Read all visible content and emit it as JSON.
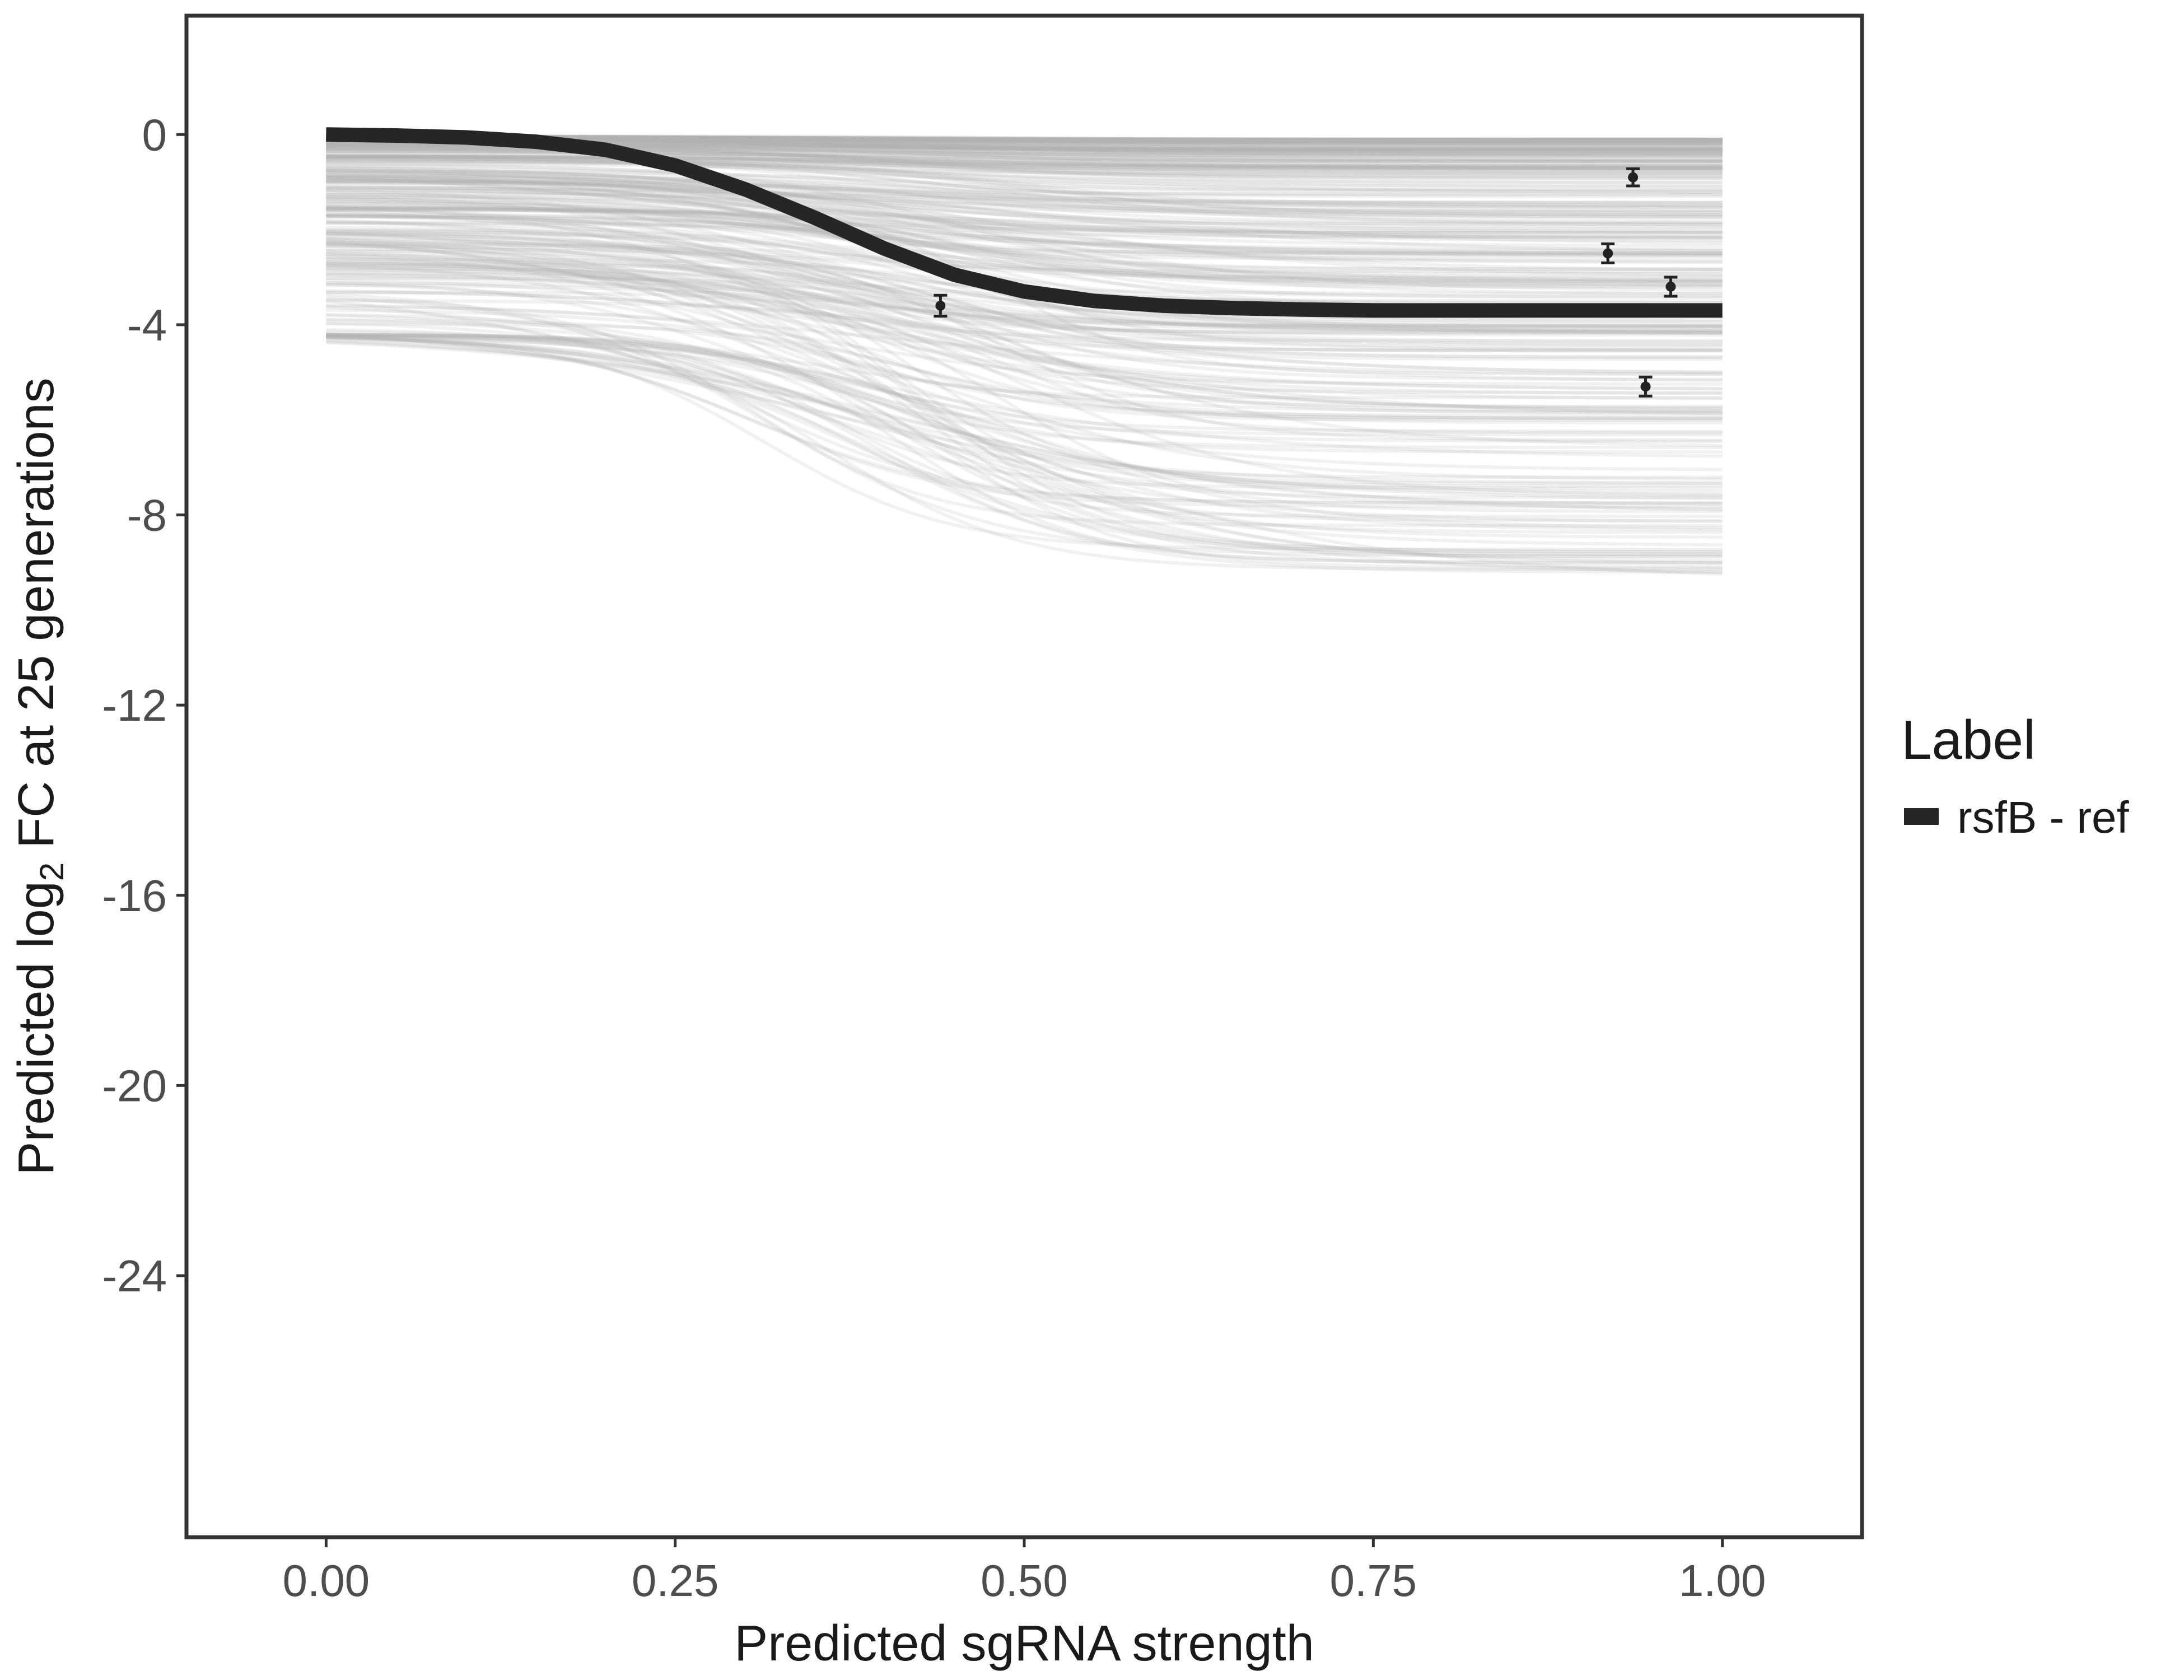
{
  "chart_data": {
    "type": "line",
    "xlabel": "Predicted sgRNA strength",
    "ylabel_pre": "Predicted  log",
    "ylabel_sub": "2",
    "ylabel_post": " FC at 25 generations",
    "xlim": [
      -0.1,
      1.1
    ],
    "ylim": [
      -29.5,
      2.5
    ],
    "x_ticks": [
      0,
      0.25,
      0.5,
      0.75,
      1
    ],
    "x_tick_labels": [
      "0.00",
      "0.25",
      "0.50",
      "0.75",
      "1.00"
    ],
    "y_ticks": [
      0,
      -4,
      -8,
      -12,
      -16,
      -20,
      -24
    ],
    "y_tick_labels": [
      "0",
      "-4",
      "-8",
      "-12",
      "-16",
      "-20",
      "-24"
    ],
    "grid": false,
    "legend": {
      "title": "Label",
      "position": "right",
      "entries": [
        {
          "label": "rsfB - ref",
          "color": "#262626"
        }
      ]
    },
    "main_series": {
      "name": "rsfB - ref",
      "color": "#262626",
      "x": [
        0,
        0.05,
        0.1,
        0.15,
        0.2,
        0.25,
        0.3,
        0.35,
        0.4,
        0.45,
        0.5,
        0.55,
        0.6,
        0.65,
        0.7,
        0.75,
        0.8,
        0.85,
        0.9,
        0.95,
        1
      ],
      "y": [
        0,
        -0.02,
        -0.06,
        -0.15,
        -0.32,
        -0.65,
        -1.15,
        -1.75,
        -2.4,
        -2.95,
        -3.3,
        -3.5,
        -3.6,
        -3.65,
        -3.68,
        -3.7,
        -3.7,
        -3.7,
        -3.7,
        -3.7,
        -3.7
      ]
    },
    "posterior_draws": {
      "color": "#b0b0b0",
      "count": 320,
      "y_end_range": [
        -9.6,
        -0.1
      ],
      "y_start_range": [
        -4.2,
        0
      ],
      "x_mid_range": [
        0.3,
        0.5
      ]
    },
    "points": [
      {
        "x": 0.44,
        "y": -3.6,
        "err": 0.22
      },
      {
        "x": 0.918,
        "y": -2.5,
        "err": 0.2
      },
      {
        "x": 0.936,
        "y": -0.9,
        "err": 0.18
      },
      {
        "x": 0.945,
        "y": -5.3,
        "err": 0.2
      },
      {
        "x": 0.963,
        "y": -3.2,
        "err": 0.2
      }
    ]
  }
}
